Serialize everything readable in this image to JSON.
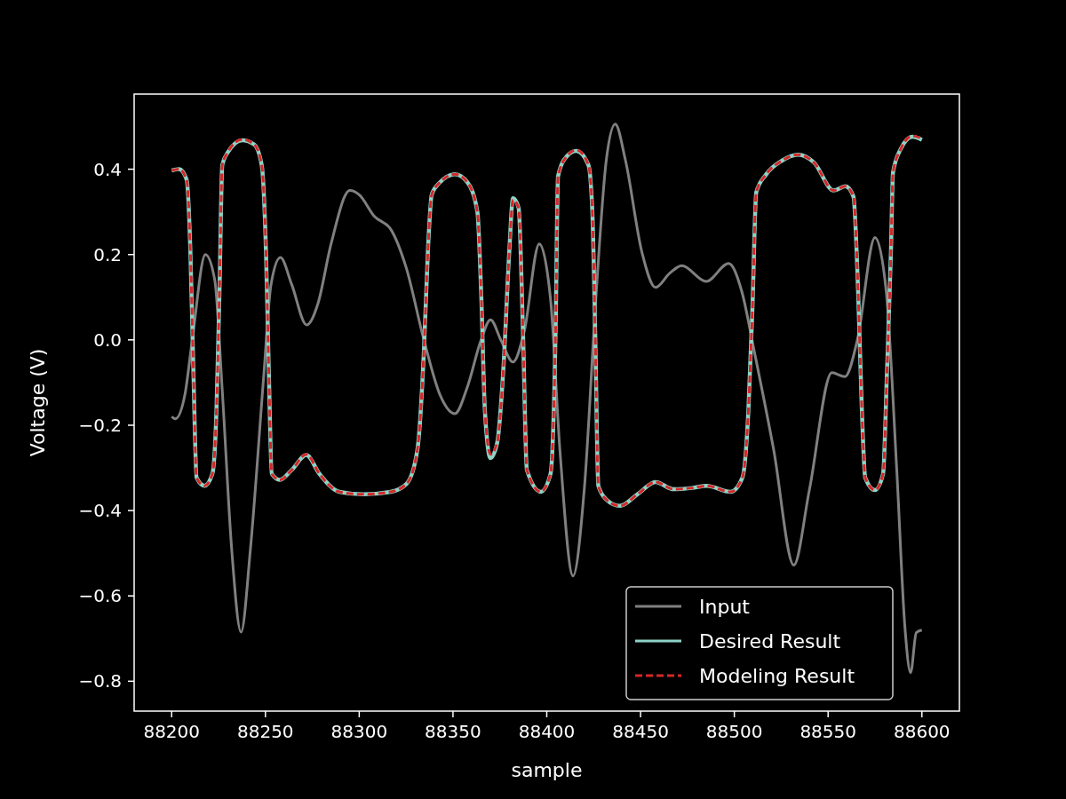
{
  "chart_data": {
    "type": "line",
    "xlabel": "sample",
    "ylabel": "Voltage (V)",
    "xlim": [
      88180,
      88620
    ],
    "ylim": [
      -0.87,
      0.576
    ],
    "xticks": [
      88200,
      88250,
      88300,
      88350,
      88400,
      88450,
      88500,
      88550,
      88600
    ],
    "yticks": [
      {
        "value": -0.8,
        "label": "−0.8"
      },
      {
        "value": -0.6,
        "label": "−0.6"
      },
      {
        "value": -0.4,
        "label": "−0.4"
      },
      {
        "value": -0.2,
        "label": "−0.2"
      },
      {
        "value": 0,
        "label": "0.0"
      },
      0.2,
      0.4
    ],
    "grid": false,
    "legend": "bottom right",
    "series": [
      {
        "name": "Input",
        "color": "#808080",
        "line_style": "solid",
        "x": [
          88200,
          88202,
          88207,
          88211,
          88218,
          88223,
          88227,
          88232,
          88237,
          88242,
          88249,
          88253,
          88258,
          88264,
          88272,
          88278,
          88285,
          88295,
          88300,
          88308,
          88317,
          88325,
          88334.5,
          88343,
          88351,
          88357.7,
          88365,
          88370,
          88375.7,
          88382,
          88388,
          88396,
          88402,
          88407,
          88414,
          88420,
          88426.4,
          88431.7,
          88436.5,
          88442,
          88450.7,
          88458,
          88465.5,
          88472,
          88485,
          88497,
          88504,
          88510.6,
          88521,
          88531.7,
          88540,
          88552,
          88559,
          88565.6,
          88575,
          88581,
          88586.6,
          88591,
          88594,
          88597,
          88600
        ],
        "values": [
          -0.18,
          -0.185,
          -0.13,
          0.0,
          0.2,
          0.14,
          -0.12,
          -0.49,
          -0.685,
          -0.49,
          -0.09,
          0.13,
          0.193,
          0.13,
          0.035,
          0.085,
          0.225,
          0.35,
          0.34,
          0.29,
          0.258,
          0.17,
          0.0,
          -0.128,
          -0.173,
          -0.11,
          0.0,
          0.047,
          -0.002,
          -0.052,
          0.02,
          0.225,
          0.096,
          -0.258,
          -0.553,
          -0.35,
          0.113,
          0.42,
          0.506,
          0.42,
          0.206,
          0.123,
          0.156,
          0.174,
          0.137,
          0.179,
          0.113,
          -0.026,
          -0.258,
          -0.528,
          -0.352,
          -0.077,
          -0.086,
          0.0,
          0.24,
          0.113,
          -0.305,
          -0.676,
          -0.78,
          -0.686,
          -0.68
        ]
      },
      {
        "name": "Desired Result",
        "color": "#8dd3c7",
        "line_style": "solid",
        "x": [
          88200,
          88204,
          88208,
          88210,
          88211.6,
          88213.3,
          88217.5,
          88221.7,
          88223.9,
          88225.5,
          88227,
          88230,
          88237.6,
          88244,
          88248,
          88250.3,
          88251.8,
          88253.4,
          88257.7,
          88264,
          88271.8,
          88278.8,
          88289.4,
          88302,
          88316.8,
          88325.3,
          88331,
          88334.5,
          88336.6,
          88338.7,
          88343,
          88351,
          88357.7,
          88363,
          88365,
          88367,
          88370,
          88373.6,
          88376.8,
          88380,
          88382,
          88385,
          88387.3,
          88389.4,
          88396.8,
          88402,
          88404.7,
          88406,
          88410.6,
          88415.8,
          88422.2,
          88424.3,
          88425.8,
          88427.5,
          88431.7,
          88439,
          88448.6,
          88458,
          88467.6,
          88477.4,
          88485.3,
          88498,
          88504.3,
          88507.5,
          88509.6,
          88511.7,
          88517,
          88525.4,
          88534,
          88542.4,
          88553,
          88559.2,
          88563.5,
          88566,
          88568,
          88569.8,
          88575,
          88579.3,
          88581.4,
          88583.5,
          88584.6,
          88588.8,
          88595,
          88600
        ],
        "values": [
          0.397,
          0.4,
          0.375,
          0.206,
          -0.073,
          -0.323,
          -0.342,
          -0.314,
          -0.165,
          0.113,
          0.41,
          0.44,
          0.468,
          0.458,
          0.41,
          0.206,
          -0.073,
          -0.314,
          -0.328,
          -0.305,
          -0.27,
          -0.314,
          -0.356,
          -0.362,
          -0.356,
          -0.337,
          -0.258,
          -0.026,
          0.206,
          0.341,
          0.369,
          0.388,
          0.369,
          0.3,
          0.113,
          -0.165,
          -0.277,
          -0.24,
          -0.073,
          0.206,
          0.332,
          0.309,
          0.02,
          -0.305,
          -0.356,
          -0.314,
          0.02,
          0.383,
          0.43,
          0.443,
          0.41,
          0.3,
          0.02,
          -0.342,
          -0.374,
          -0.389,
          -0.361,
          -0.333,
          -0.35,
          -0.347,
          -0.342,
          -0.356,
          -0.323,
          -0.165,
          0.067,
          0.346,
          0.388,
          0.42,
          0.434,
          0.416,
          0.35,
          0.36,
          0.336,
          0.113,
          -0.165,
          -0.323,
          -0.352,
          -0.314,
          -0.073,
          0.206,
          0.392,
          0.448,
          0.476,
          0.469
        ]
      },
      {
        "name": "Modeling Result",
        "color": "#d62728",
        "line_style": "dashed",
        "x": [
          88200,
          88204,
          88208,
          88210,
          88211.6,
          88213.3,
          88217.5,
          88221.7,
          88223.9,
          88225.5,
          88227,
          88230,
          88237.6,
          88244,
          88248,
          88250.3,
          88251.8,
          88253.4,
          88257.7,
          88264,
          88271.8,
          88278.8,
          88289.4,
          88302,
          88316.8,
          88325.3,
          88331,
          88334.5,
          88336.6,
          88338.7,
          88343,
          88351,
          88357.7,
          88363,
          88365,
          88367,
          88370,
          88373.6,
          88376.8,
          88380,
          88382,
          88385,
          88387.3,
          88389.4,
          88396.8,
          88402,
          88404.7,
          88406,
          88410.6,
          88415.8,
          88422.2,
          88424.3,
          88425.8,
          88427.5,
          88431.7,
          88439,
          88448.6,
          88458,
          88467.6,
          88477.4,
          88485.3,
          88498,
          88504.3,
          88507.5,
          88509.6,
          88511.7,
          88517,
          88525.4,
          88534,
          88542.4,
          88553,
          88559.2,
          88563.5,
          88566,
          88568,
          88569.8,
          88575,
          88579.3,
          88581.4,
          88583.5,
          88584.6,
          88588.8,
          88595,
          88600
        ],
        "values": [
          0.397,
          0.4,
          0.375,
          0.206,
          -0.073,
          -0.323,
          -0.342,
          -0.314,
          -0.165,
          0.113,
          0.41,
          0.44,
          0.47,
          0.458,
          0.41,
          0.206,
          -0.073,
          -0.314,
          -0.328,
          -0.305,
          -0.268,
          -0.314,
          -0.356,
          -0.362,
          -0.356,
          -0.337,
          -0.258,
          -0.026,
          0.206,
          0.341,
          0.369,
          0.388,
          0.369,
          0.3,
          0.113,
          -0.165,
          -0.268,
          -0.24,
          -0.073,
          0.206,
          0.328,
          0.309,
          0.02,
          -0.305,
          -0.356,
          -0.314,
          0.02,
          0.383,
          0.43,
          0.445,
          0.41,
          0.3,
          0.02,
          -0.342,
          -0.374,
          -0.389,
          -0.361,
          -0.333,
          -0.35,
          -0.347,
          -0.342,
          -0.356,
          -0.323,
          -0.165,
          0.067,
          0.346,
          0.388,
          0.42,
          0.434,
          0.416,
          0.35,
          0.36,
          0.336,
          0.113,
          -0.165,
          -0.323,
          -0.352,
          -0.314,
          -0.073,
          0.206,
          0.392,
          0.448,
          0.478,
          0.472
        ]
      }
    ]
  }
}
